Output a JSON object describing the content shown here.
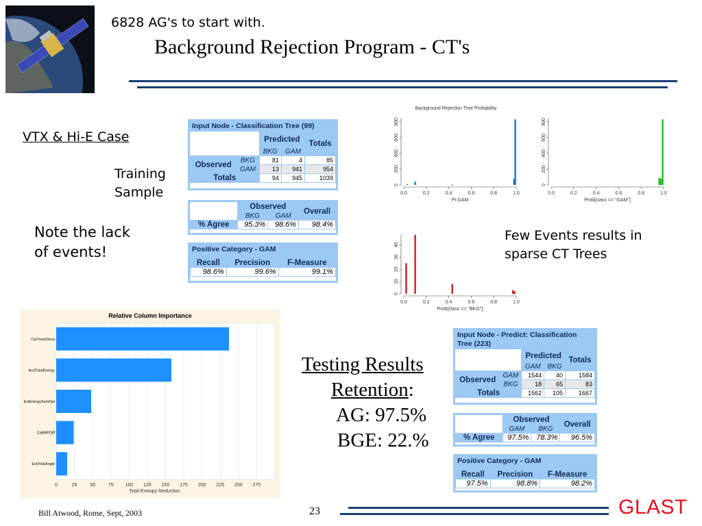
{
  "slide": {
    "subtitle": "6828 AG's to start with.",
    "title": "Background Rejection Program - CT's",
    "case_label": "VTX & Hi-E Case",
    "training_sample": [
      "Training",
      "Sample"
    ],
    "note": [
      "Note the lack",
      "of events!"
    ],
    "few_events": [
      "Few Events results in",
      "sparse CT Trees"
    ],
    "testing": {
      "heading": "Testing Results",
      "retention_label": "Retention",
      "retention_colon": ":",
      "ag": "AG: 97.5%",
      "bge": "BGE: 22.%"
    },
    "footer": {
      "author": "Bill Atwood,  Rome, Sept, 2003",
      "page": "23",
      "logo": "GLAST"
    }
  },
  "train_tables": {
    "cls": {
      "header": "Input Node - Classification Tree (99)",
      "predicted": "Predicted",
      "totals": "Totals",
      "observed": "Observed",
      "col_a": "BKG",
      "col_b": "GAM",
      "rows": [
        {
          "label": "BKG",
          "a": "81",
          "b": "4",
          "t": "85"
        },
        {
          "label": "GAM",
          "a": "13",
          "b": "941",
          "t": "954"
        }
      ],
      "tot_label": "Totals",
      "tot_a": "94",
      "tot_b": "945",
      "tot_t": "1039"
    },
    "agree": {
      "observed": "Observed",
      "overall": "Overall",
      "col_a": "BKG",
      "col_b": "GAM",
      "label": "% Agree",
      "a": "95.3%",
      "b": "98.6%",
      "overall_val": "98.4%"
    },
    "pos": {
      "header": "Positive Category - GAM",
      "h1": "Recall",
      "h2": "Precision",
      "h3": "F-Measure",
      "v1": "98.6%",
      "v2": "99.6%",
      "v3": "99.1%"
    }
  },
  "test_tables": {
    "cls": {
      "header": "Input Node - Predict: Classification Tree (223)",
      "predicted": "Predicted",
      "totals": "Totals",
      "observed": "Observed",
      "col_a": "GAM",
      "col_b": "BKG",
      "rows": [
        {
          "label": "GAM",
          "a": "1544",
          "b": "40",
          "t": "1584"
        },
        {
          "label": "BKG",
          "a": "18",
          "b": "65",
          "t": "83"
        }
      ],
      "tot_label": "Totals",
      "tot_a": "1562",
      "tot_b": "105",
      "tot_t": "1667"
    },
    "agree": {
      "observed": "Observed",
      "overall": "Overall",
      "col_a": "GAM",
      "col_b": "BKG",
      "label": "% Agree",
      "a": "97.5%",
      "b": "78.3%",
      "overall_val": "96.5%"
    },
    "pos": {
      "header": "Positive Category - GAM",
      "h1": "Recall",
      "h2": "Precision",
      "h3": "F-Measure",
      "v1": "97.5%",
      "v2": "98.8%",
      "v3": "98.2%"
    }
  },
  "colors": {
    "title_rule": "#1a3d6e",
    "table_blue": "#9cc8f4",
    "bar_blue": "#1e90ff",
    "hist_blue": "#1f6fd0",
    "hist_green": "#22bb22",
    "hist_red": "#c81e1e",
    "glast_red": "#e8101a"
  },
  "chart_data": [
    {
      "type": "bar",
      "orientation": "horizontal",
      "title": "Relative Column Importance",
      "xlabel": "Total Entropy Reduction",
      "categories": [
        "CalTrackDoca",
        "AcdTotalEnergy",
        "EvtEnergySumOpt",
        "CalMIPDiff",
        "EvtVtxEAngle"
      ],
      "values": [
        237,
        158,
        48,
        24,
        15
      ],
      "xlim": [
        0,
        300
      ],
      "xticks": [
        0,
        25,
        50,
        75,
        100,
        125,
        150,
        175,
        200,
        225,
        250,
        275
      ],
      "grid": true
    },
    {
      "type": "bar",
      "title": "Background Rejection Tree Probability",
      "xlabel": "Pr.GAM",
      "color": "blue",
      "xlim": [
        0,
        1
      ],
      "ylim": [
        0,
        850
      ],
      "xticks": [
        "0.0",
        "0.2",
        "0.4",
        "0.6",
        "0.8",
        "1.0"
      ],
      "yticks": [
        "0",
        "200",
        "400",
        "600",
        "800"
      ],
      "bars": [
        {
          "x": 0.03,
          "y": 12
        },
        {
          "x": 0.1,
          "y": 40
        },
        {
          "x": 0.43,
          "y": 4
        },
        {
          "x": 0.98,
          "y": 80
        },
        {
          "x": 0.99,
          "y": 830
        }
      ]
    },
    {
      "type": "bar",
      "xlabel": "Prob[class == \"GAM\"]",
      "color": "green",
      "xlim": [
        0,
        1
      ],
      "ylim": [
        0,
        850
      ],
      "xticks": [
        "0.0",
        "0.2",
        "0.4",
        "0.6",
        "0.8",
        "1.0"
      ],
      "yticks": [
        "0",
        "200",
        "400",
        "600",
        "800"
      ],
      "bars": [
        {
          "x": 0.96,
          "y": 90
        },
        {
          "x": 0.975,
          "y": 80
        },
        {
          "x": 0.99,
          "y": 830
        }
      ]
    },
    {
      "type": "bar",
      "xlabel": "Prob[class == \"BKG\"]",
      "color": "red",
      "xlim": [
        0,
        1
      ],
      "ylim": [
        0,
        48
      ],
      "xticks": [
        "0.0",
        "0.2",
        "0.4",
        "0.6",
        "0.8",
        "1.0"
      ],
      "yticks": [
        "0",
        "10",
        "20",
        "30",
        "40"
      ],
      "bars": [
        {
          "x": 0.02,
          "y": 25
        },
        {
          "x": 0.1,
          "y": 48
        },
        {
          "x": 0.43,
          "y": 8
        },
        {
          "x": 0.97,
          "y": 3
        },
        {
          "x": 0.985,
          "y": 2
        }
      ]
    }
  ]
}
